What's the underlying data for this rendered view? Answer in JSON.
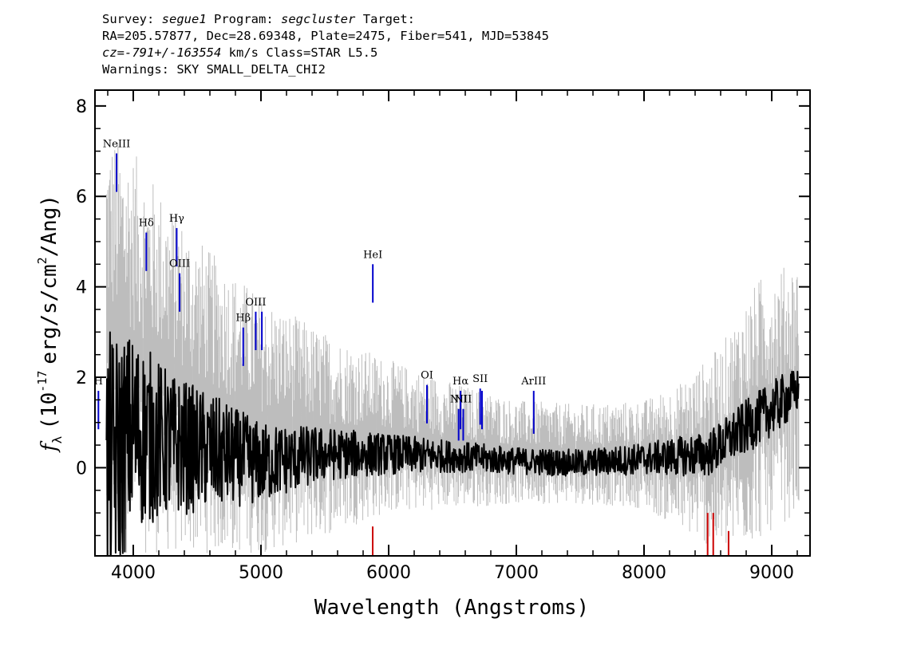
{
  "header": {
    "survey_label": "Survey:",
    "survey": "segue1",
    "program_label": "Program:",
    "program": "segcluster",
    "target_label": "Target:",
    "line2": "RA=205.57877, Dec=28.69348, Plate=2475, Fiber=541, MJD=53845",
    "cz_label": "cz=",
    "cz_value": "-791+/-163554",
    "cz_rest": "km/s  Class=STAR  L5.5",
    "warnings": "Warnings: SKY SMALL_DELTA_CHI2"
  },
  "chart_data": {
    "type": "line",
    "xlabel": "Wavelength (Angstroms)",
    "ylabel_prefix": "f",
    "ylabel_sub": "λ",
    "ylabel_main": "(10",
    "ylabel_exp": "-17",
    "ylabel_mid": "erg/s/cm",
    "ylabel_exp2": "2",
    "ylabel_end": "/Ang)",
    "xlim": [
      3700,
      9300
    ],
    "ylim": [
      -1.95,
      8.35
    ],
    "x_ticks": [
      4000,
      5000,
      6000,
      7000,
      8000,
      9000
    ],
    "x_tick_labels": [
      "4000",
      "5000",
      "6000",
      "7000",
      "8000",
      "9000"
    ],
    "y_ticks": [
      0,
      2,
      4,
      6,
      8
    ],
    "y_tick_labels": [
      "0",
      "2",
      "4",
      "6",
      "8"
    ],
    "series": [
      {
        "role": "error-envelope",
        "color": "#bdbdbd",
        "envelope": [
          {
            "x": 3800,
            "lo": -1.9,
            "hi": 7.5
          },
          {
            "x": 4000,
            "lo": -1.9,
            "hi": 7.0
          },
          {
            "x": 4300,
            "lo": -1.9,
            "hi": 5.8
          },
          {
            "x": 4600,
            "lo": -1.9,
            "hi": 4.8
          },
          {
            "x": 5000,
            "lo": -1.9,
            "hi": 3.8
          },
          {
            "x": 5500,
            "lo": -1.5,
            "hi": 3.0
          },
          {
            "x": 6000,
            "lo": -1.0,
            "hi": 2.4
          },
          {
            "x": 6500,
            "lo": -0.9,
            "hi": 1.9
          },
          {
            "x": 7000,
            "lo": -0.8,
            "hi": 1.5
          },
          {
            "x": 7500,
            "lo": -0.8,
            "hi": 1.4
          },
          {
            "x": 8000,
            "lo": -0.9,
            "hi": 1.5
          },
          {
            "x": 8300,
            "lo": -1.4,
            "hi": 1.9
          },
          {
            "x": 8600,
            "lo": -1.9,
            "hi": 2.7
          },
          {
            "x": 8900,
            "lo": -1.6,
            "hi": 4.2
          },
          {
            "x": 9200,
            "lo": -1.0,
            "hi": 4.6
          }
        ]
      },
      {
        "role": "flux",
        "color": "#000000",
        "trend": [
          {
            "x": 3800,
            "y": 0.0,
            "amp": 3.0
          },
          {
            "x": 4000,
            "y": 0.8,
            "amp": 2.2
          },
          {
            "x": 4300,
            "y": 0.5,
            "amp": 1.6
          },
          {
            "x": 4700,
            "y": 0.3,
            "amp": 1.2
          },
          {
            "x": 5000,
            "y": 0.1,
            "amp": 0.9
          },
          {
            "x": 5500,
            "y": 0.3,
            "amp": 0.6
          },
          {
            "x": 6000,
            "y": 0.3,
            "amp": 0.45
          },
          {
            "x": 6500,
            "y": 0.25,
            "amp": 0.35
          },
          {
            "x": 7000,
            "y": 0.15,
            "amp": 0.3
          },
          {
            "x": 7500,
            "y": 0.1,
            "amp": 0.3
          },
          {
            "x": 8000,
            "y": 0.2,
            "amp": 0.35
          },
          {
            "x": 8500,
            "y": 0.3,
            "amp": 0.5
          },
          {
            "x": 8800,
            "y": 0.9,
            "amp": 0.6
          },
          {
            "x": 9100,
            "y": 1.5,
            "amp": 0.6
          },
          {
            "x": 9200,
            "y": 1.7,
            "amp": 0.5
          }
        ]
      }
    ],
    "emission_lines": [
      {
        "label": "H",
        "x": 3727,
        "y0": 0.85,
        "y1": 1.7
      },
      {
        "label": "NeIII",
        "x": 3869,
        "y0": 6.1,
        "y1": 6.95
      },
      {
        "label": "Hδ",
        "x": 4102,
        "y0": 4.35,
        "y1": 5.2
      },
      {
        "label": "Hγ",
        "x": 4340,
        "y0": 4.45,
        "y1": 5.3
      },
      {
        "label": "OIII",
        "x": 4363,
        "y0": 3.45,
        "y1": 4.3
      },
      {
        "label": "Hβ",
        "x": 4861,
        "y0": 2.25,
        "y1": 3.1
      },
      {
        "label": "OIII",
        "x": 4959,
        "y0": 2.6,
        "y1": 3.45
      },
      {
        "label": "",
        "x": 5007,
        "y0": 2.6,
        "y1": 3.45
      },
      {
        "label": "HeI",
        "x": 5876,
        "y0": 3.65,
        "y1": 4.5
      },
      {
        "label": "OI",
        "x": 6300,
        "y0": 0.98,
        "y1": 1.83
      },
      {
        "label": "NII",
        "x": 6548,
        "y0": 0.6,
        "y1": 1.3
      },
      {
        "label": "Hα",
        "x": 6563,
        "y0": 0.85,
        "y1": 1.7
      },
      {
        "label": "NII",
        "x": 6584,
        "y0": 0.6,
        "y1": 1.3
      },
      {
        "label": "SII",
        "x": 6717,
        "y0": 0.95,
        "y1": 1.75
      },
      {
        "label": "",
        "x": 6731,
        "y0": 0.85,
        "y1": 1.7
      },
      {
        "label": "ArIII",
        "x": 7136,
        "y0": 0.75,
        "y1": 1.7
      }
    ],
    "absorption_lines": [
      {
        "x": 5875,
        "y0": -1.95,
        "y1": -1.3
      },
      {
        "x": 8498,
        "y0": -1.95,
        "y1": -1.0
      },
      {
        "x": 8542,
        "y0": -1.95,
        "y1": -1.0
      },
      {
        "x": 8662,
        "y0": -1.95,
        "y1": -1.4
      }
    ],
    "emission_color": "#0000cc",
    "absorption_color": "#cc0000"
  }
}
